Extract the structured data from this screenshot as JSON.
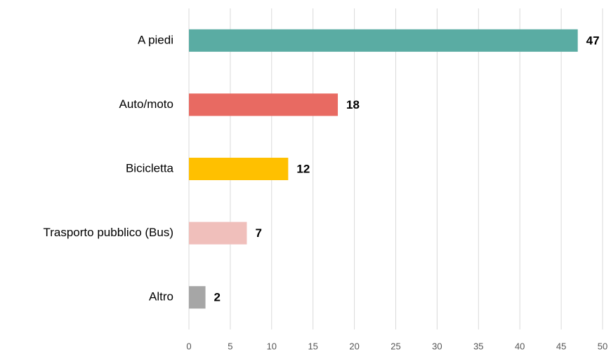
{
  "chart_data": {
    "type": "bar",
    "orientation": "horizontal",
    "categories": [
      "A piedi",
      "Auto/moto",
      "Bicicletta",
      "Trasporto pubblico (Bus)",
      "Altro"
    ],
    "values": [
      47,
      18,
      12,
      7,
      2
    ],
    "colors": [
      "#5aaca3",
      "#e86a62",
      "#ffc000",
      "#f0bfbb",
      "#a6a6a6"
    ],
    "xlim": [
      0,
      50
    ],
    "xticks": [
      0,
      5,
      10,
      15,
      20,
      25,
      30,
      35,
      40,
      45,
      50
    ],
    "grid": true
  }
}
